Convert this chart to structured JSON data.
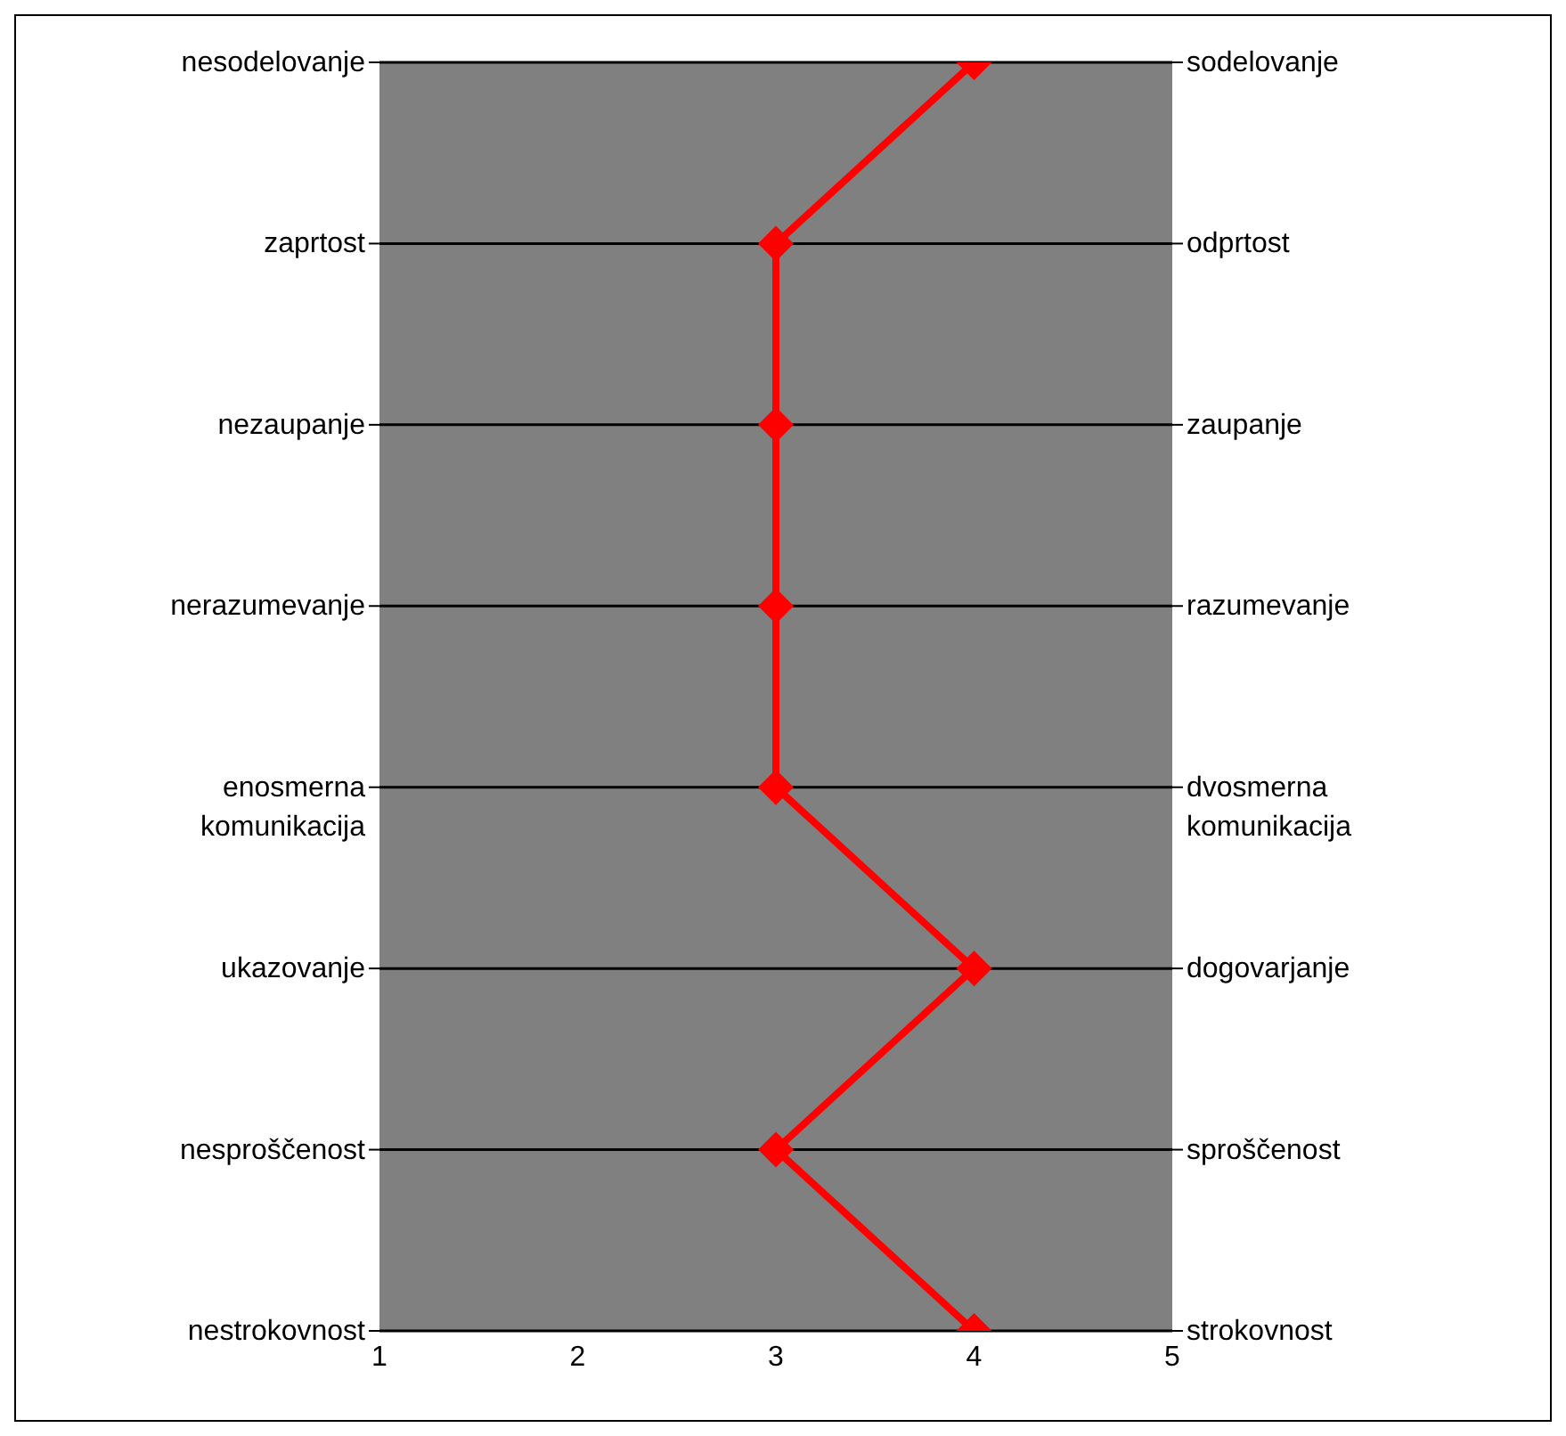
{
  "chart_data": {
    "type": "line",
    "orientation": "horizontal",
    "categories": [
      "nesodelovanje",
      "zaprtost",
      "nezaupanje",
      "nerazumevanje",
      "enosmerna komunikacija",
      "ukazovanje",
      "nesproščenost",
      "nestrokovnost"
    ],
    "y2_categories": [
      "sodelovanje",
      "odprtost",
      "zaupanje",
      "razumevanje",
      "dvosmerna komunikacija",
      "dogovarjanje",
      "sproščenost",
      "strokovnost"
    ],
    "series": [
      {
        "color": "#ff0000",
        "values": [
          4,
          3,
          3,
          3,
          3,
          4,
          3,
          4
        ]
      }
    ],
    "xlim": [
      1,
      5
    ],
    "xticks": [
      1,
      2,
      3,
      4,
      5
    ],
    "grid": "y",
    "marker": "diamond",
    "line_style": "solid",
    "legend": false
  }
}
